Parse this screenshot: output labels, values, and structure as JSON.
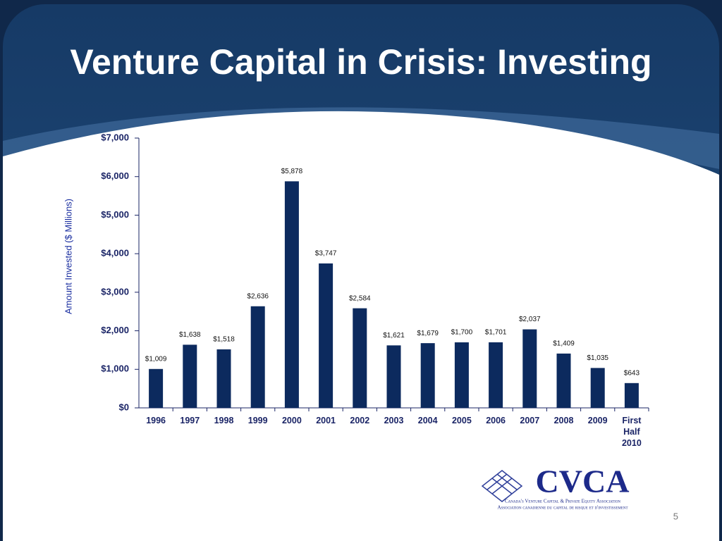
{
  "chart_data": {
    "type": "bar",
    "title": "Venture Capital in Crisis: Investing",
    "y_label": "Amount Invested ($ Millions)",
    "categories": [
      "1996",
      "1997",
      "1998",
      "1999",
      "2000",
      "2001",
      "2002",
      "2003",
      "2004",
      "2005",
      "2006",
      "2007",
      "2008",
      "2009",
      "First Half 2010"
    ],
    "values": [
      1009,
      1638,
      1518,
      2636,
      5878,
      3747,
      2584,
      1621,
      1679,
      1700,
      1701,
      2037,
      1409,
      1035,
      643
    ],
    "value_labels": [
      "$1,009",
      "$1,638",
      "$1,518",
      "$2,636",
      "$5,878",
      "$3,747",
      "$2,584",
      "$1,621",
      "$1,679",
      "$1,700",
      "$1,701",
      "$2,037",
      "$1,409",
      "$1,035",
      "$643"
    ],
    "color": "#0c2a5e",
    "ylim": [
      0,
      7000
    ],
    "yticks": [
      {
        "value": 0,
        "label": "$0"
      },
      {
        "value": 1000,
        "label": "$1,000"
      },
      {
        "value": 2000,
        "label": "$2,000"
      },
      {
        "value": 3000,
        "label": "$3,000"
      },
      {
        "value": 4000,
        "label": "$4,000"
      },
      {
        "value": 5000,
        "label": "$5,000"
      },
      {
        "value": 6000,
        "label": "$6,000"
      },
      {
        "value": 7000,
        "label": "$7,000"
      }
    ],
    "grid": false
  },
  "slide": {
    "page_number": "5",
    "logo": {
      "name": "CVCA",
      "line1": "Canada's Venture Capital & Private Equity Association",
      "line2": "Association canadienne du capital de risque et d'investissement"
    }
  }
}
